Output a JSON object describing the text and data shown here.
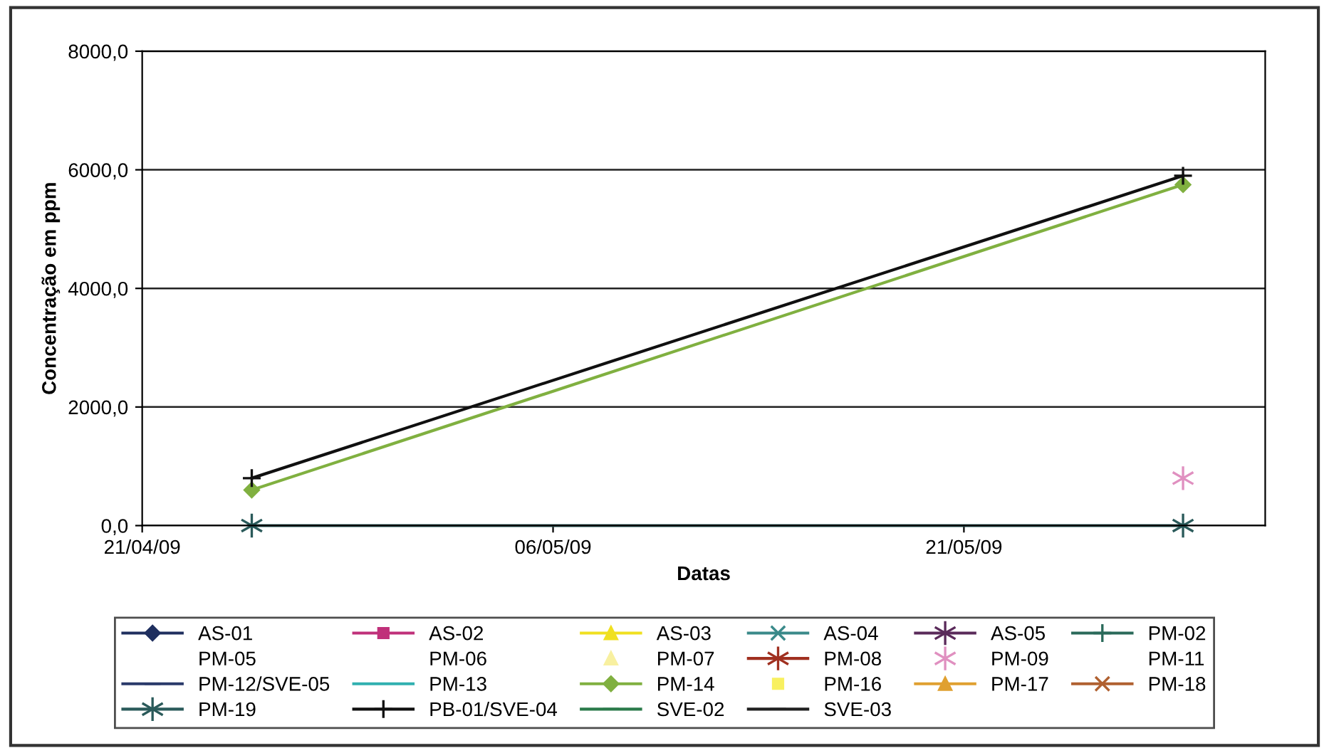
{
  "chart_data": {
    "type": "line",
    "xlabel": "Datas",
    "ylabel": "Concentração em ppm",
    "x": [
      "2009-04-25",
      "2009-05-29"
    ],
    "xlim": [
      "2009-04-21",
      "2009-06-01"
    ],
    "xticks": [
      {
        "value": "2009-04-21",
        "label": "21/04/09"
      },
      {
        "value": "2009-05-06",
        "label": "06/05/09"
      },
      {
        "value": "2009-05-21",
        "label": "21/05/09"
      }
    ],
    "ylim": [
      0,
      8000
    ],
    "yticks": [
      {
        "value": 0,
        "label": "0,0"
      },
      {
        "value": 2000,
        "label": "2000,0"
      },
      {
        "value": 4000,
        "label": "4000,0"
      },
      {
        "value": 6000,
        "label": "6000,0"
      },
      {
        "value": 8000,
        "label": "8000,0"
      }
    ],
    "grid": "y",
    "legend": "bottom",
    "series": [
      {
        "name": "AS-01",
        "color": "#1f2f5f",
        "marker": "diamond",
        "values": [
          null,
          null
        ]
      },
      {
        "name": "AS-02",
        "color": "#c0307a",
        "marker": "square",
        "values": [
          null,
          null
        ]
      },
      {
        "name": "AS-03",
        "color": "#f0e020",
        "marker": "triangle",
        "values": [
          null,
          null
        ]
      },
      {
        "name": "AS-04",
        "color": "#3a8a8a",
        "marker": "x",
        "values": [
          null,
          null
        ]
      },
      {
        "name": "AS-05",
        "color": "#5a2a5a",
        "marker": "asterisk",
        "values": [
          null,
          null
        ]
      },
      {
        "name": "PM-02",
        "color": "#2a6a5a",
        "marker": "plus",
        "values": [
          null,
          null
        ]
      },
      {
        "name": "PM-05",
        "color": null,
        "marker": "none",
        "values": [
          null,
          null
        ]
      },
      {
        "name": "PM-06",
        "color": null,
        "marker": "none",
        "values": [
          null,
          null
        ]
      },
      {
        "name": "PM-07",
        "color": "#f8f0a0",
        "marker": "triangle",
        "type": "scatter",
        "values": [
          null,
          null
        ]
      },
      {
        "name": "PM-08",
        "color": "#a03020",
        "marker": "asterisk",
        "values": [
          null,
          null
        ]
      },
      {
        "name": "PM-09",
        "color": "#e090c0",
        "marker": "cross",
        "type": "scatter",
        "values": [
          null,
          800
        ]
      },
      {
        "name": "PM-11",
        "color": null,
        "marker": "none",
        "values": [
          null,
          null
        ]
      },
      {
        "name": "PM-12/SVE-05",
        "color": "#2a3a6a",
        "marker": "dash",
        "values": [
          null,
          null
        ]
      },
      {
        "name": "PM-13",
        "color": "#30b0b0",
        "marker": "none",
        "values": [
          null,
          null
        ]
      },
      {
        "name": "PM-14",
        "color": "#80b040",
        "marker": "diamond",
        "values": [
          600,
          5750
        ]
      },
      {
        "name": "PM-16",
        "color": "#f8f060",
        "marker": "square",
        "type": "scatter",
        "values": [
          null,
          null
        ]
      },
      {
        "name": "PM-17",
        "color": "#e0a030",
        "marker": "triangle",
        "values": [
          null,
          null
        ]
      },
      {
        "name": "PM-18",
        "color": "#b06030",
        "marker": "x",
        "values": [
          null,
          null
        ]
      },
      {
        "name": "PM-19",
        "color": "#2a5a5a",
        "marker": "cross",
        "values": [
          0,
          0
        ]
      },
      {
        "name": "PB-01/SVE-04",
        "color": "#101010",
        "marker": "plus",
        "values": [
          800,
          5900
        ]
      },
      {
        "name": "SVE-02",
        "color": "#2a7a4a",
        "marker": "dash",
        "values": [
          null,
          null
        ]
      },
      {
        "name": "SVE-03",
        "color": "#202020",
        "marker": "dash",
        "values": [
          null,
          null
        ]
      }
    ]
  }
}
